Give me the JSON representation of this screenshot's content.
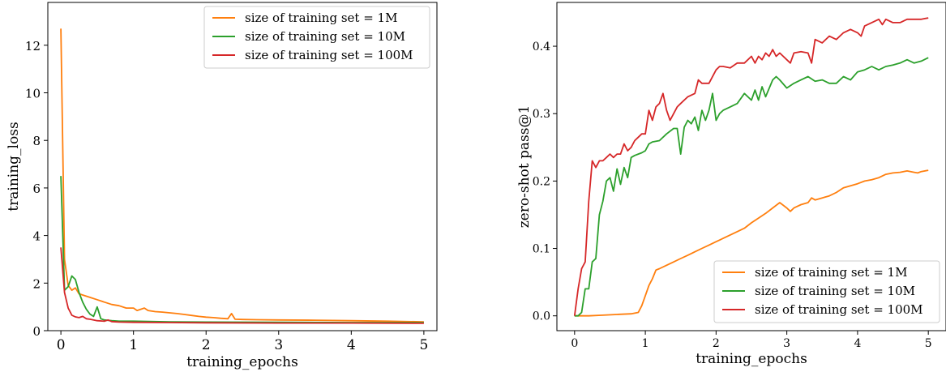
{
  "chart_data": [
    {
      "type": "line",
      "title": "",
      "xlabel": "training_epochs",
      "ylabel": "training_loss",
      "xlim": [
        -0.18,
        5.18
      ],
      "ylim": [
        0,
        13.8
      ],
      "xticks": [
        0,
        1,
        2,
        3,
        4,
        5
      ],
      "xtick_labels": [
        "0",
        "1",
        "2",
        "3",
        "4",
        "5"
      ],
      "yticks": [
        0,
        2,
        4,
        6,
        8,
        10,
        12
      ],
      "ytick_labels": [
        "0",
        "2",
        "4",
        "6",
        "8",
        "10",
        "12"
      ],
      "grid": false,
      "legend_position": "upper right",
      "series": [
        {
          "name": "size of training set = 1M",
          "color": "#ff7f0e",
          "x": [
            0,
            0.05,
            0.1,
            0.15,
            0.2,
            0.25,
            0.3,
            0.4,
            0.5,
            0.6,
            0.7,
            0.8,
            0.9,
            1.0,
            1.05,
            1.1,
            1.15,
            1.2,
            1.3,
            1.4,
            1.5,
            1.6,
            1.7,
            1.8,
            1.9,
            2.0,
            2.1,
            2.2,
            2.3,
            2.35,
            2.4,
            2.5,
            2.7,
            3.0,
            3.5,
            4.0,
            4.5,
            5.0
          ],
          "y": [
            12.7,
            3.0,
            1.9,
            1.7,
            1.8,
            1.55,
            1.5,
            1.4,
            1.3,
            1.2,
            1.1,
            1.05,
            0.95,
            0.95,
            0.85,
            0.9,
            0.95,
            0.85,
            0.8,
            0.78,
            0.75,
            0.72,
            0.68,
            0.64,
            0.6,
            0.57,
            0.55,
            0.52,
            0.5,
            0.72,
            0.48,
            0.47,
            0.46,
            0.45,
            0.44,
            0.42,
            0.4,
            0.37
          ]
        },
        {
          "name": "size of training set = 10M",
          "color": "#2ca02c",
          "x": [
            0,
            0.05,
            0.1,
            0.15,
            0.2,
            0.25,
            0.3,
            0.35,
            0.4,
            0.45,
            0.5,
            0.55,
            0.6,
            0.7,
            0.8,
            1.0,
            1.5,
            2.0,
            3.0,
            4.0,
            5.0
          ],
          "y": [
            6.5,
            1.7,
            1.85,
            2.3,
            2.15,
            1.6,
            1.2,
            0.9,
            0.7,
            0.6,
            1.0,
            0.5,
            0.45,
            0.42,
            0.4,
            0.4,
            0.37,
            0.36,
            0.35,
            0.34,
            0.34
          ]
        },
        {
          "name": "size of training set = 100M",
          "color": "#d62728",
          "x": [
            0,
            0.05,
            0.1,
            0.15,
            0.2,
            0.25,
            0.3,
            0.35,
            0.4,
            0.5,
            0.6,
            0.65,
            0.7,
            0.8,
            1.0,
            1.5,
            2.0,
            3.0,
            4.0,
            5.0
          ],
          "y": [
            3.5,
            1.6,
            0.95,
            0.65,
            0.58,
            0.55,
            0.6,
            0.5,
            0.48,
            0.42,
            0.4,
            0.45,
            0.38,
            0.36,
            0.35,
            0.34,
            0.33,
            0.32,
            0.32,
            0.31
          ]
        }
      ]
    },
    {
      "type": "line",
      "title": "",
      "xlabel": "training_epochs",
      "ylabel": "zero-shot pass@1",
      "xlim": [
        -0.25,
        5.25
      ],
      "ylim": [
        -0.022,
        0.465
      ],
      "xticks": [
        0,
        1,
        2,
        3,
        4,
        5
      ],
      "xtick_labels": [
        "0",
        "1",
        "2",
        "3",
        "4",
        "5"
      ],
      "yticks": [
        0.0,
        0.1,
        0.2,
        0.3,
        0.4
      ],
      "ytick_labels": [
        "0.0",
        "0.1",
        "0.2",
        "0.3",
        "0.4"
      ],
      "grid": false,
      "legend_position": "lower right",
      "series": [
        {
          "name": "size of training set = 1M",
          "color": "#ff7f0e",
          "x": [
            0,
            0.2,
            0.4,
            0.6,
            0.8,
            0.9,
            0.95,
            1.0,
            1.05,
            1.1,
            1.15,
            1.2,
            1.3,
            1.4,
            1.5,
            1.6,
            1.7,
            1.8,
            1.9,
            2.0,
            2.1,
            2.2,
            2.3,
            2.4,
            2.5,
            2.6,
            2.7,
            2.8,
            2.9,
            3.0,
            3.05,
            3.1,
            3.2,
            3.3,
            3.35,
            3.4,
            3.5,
            3.6,
            3.7,
            3.8,
            3.9,
            4.0,
            4.1,
            4.2,
            4.3,
            4.4,
            4.5,
            4.6,
            4.7,
            4.8,
            4.85,
            4.9,
            5.0
          ],
          "y": [
            0.0,
            0.0,
            0.001,
            0.002,
            0.003,
            0.005,
            0.015,
            0.03,
            0.045,
            0.055,
            0.068,
            0.07,
            0.075,
            0.08,
            0.085,
            0.09,
            0.095,
            0.1,
            0.105,
            0.11,
            0.115,
            0.12,
            0.125,
            0.13,
            0.138,
            0.145,
            0.152,
            0.16,
            0.168,
            0.16,
            0.155,
            0.16,
            0.165,
            0.168,
            0.175,
            0.172,
            0.175,
            0.178,
            0.183,
            0.19,
            0.193,
            0.196,
            0.2,
            0.202,
            0.205,
            0.21,
            0.212,
            0.213,
            0.215,
            0.213,
            0.212,
            0.214,
            0.216
          ]
        },
        {
          "name": "size of training set = 10M",
          "color": "#2ca02c",
          "x": [
            0,
            0.05,
            0.1,
            0.15,
            0.2,
            0.25,
            0.3,
            0.35,
            0.4,
            0.45,
            0.5,
            0.55,
            0.6,
            0.65,
            0.7,
            0.75,
            0.8,
            0.85,
            0.9,
            0.95,
            1.0,
            1.05,
            1.1,
            1.2,
            1.3,
            1.4,
            1.45,
            1.5,
            1.55,
            1.6,
            1.65,
            1.7,
            1.75,
            1.8,
            1.85,
            1.9,
            1.95,
            2.0,
            2.05,
            2.1,
            2.2,
            2.3,
            2.4,
            2.5,
            2.55,
            2.6,
            2.65,
            2.7,
            2.8,
            2.85,
            2.9,
            3.0,
            3.1,
            3.2,
            3.3,
            3.4,
            3.5,
            3.6,
            3.7,
            3.8,
            3.9,
            4.0,
            4.1,
            4.2,
            4.3,
            4.4,
            4.5,
            4.6,
            4.7,
            4.8,
            4.9,
            5.0
          ],
          "y": [
            0.0,
            0.0,
            0.005,
            0.04,
            0.04,
            0.08,
            0.085,
            0.15,
            0.17,
            0.2,
            0.205,
            0.185,
            0.218,
            0.195,
            0.22,
            0.205,
            0.235,
            0.238,
            0.24,
            0.242,
            0.245,
            0.255,
            0.258,
            0.26,
            0.27,
            0.278,
            0.278,
            0.24,
            0.28,
            0.29,
            0.285,
            0.295,
            0.275,
            0.305,
            0.29,
            0.305,
            0.33,
            0.29,
            0.3,
            0.305,
            0.31,
            0.315,
            0.33,
            0.32,
            0.335,
            0.32,
            0.34,
            0.325,
            0.35,
            0.355,
            0.35,
            0.338,
            0.345,
            0.35,
            0.355,
            0.348,
            0.35,
            0.345,
            0.345,
            0.355,
            0.35,
            0.362,
            0.365,
            0.37,
            0.365,
            0.37,
            0.372,
            0.375,
            0.38,
            0.375,
            0.378,
            0.383
          ]
        },
        {
          "name": "size of training set = 100M",
          "color": "#d62728",
          "x": [
            0,
            0.05,
            0.1,
            0.15,
            0.2,
            0.25,
            0.3,
            0.35,
            0.4,
            0.45,
            0.5,
            0.55,
            0.6,
            0.65,
            0.7,
            0.75,
            0.8,
            0.85,
            0.9,
            0.95,
            1.0,
            1.05,
            1.1,
            1.15,
            1.2,
            1.25,
            1.3,
            1.35,
            1.4,
            1.45,
            1.5,
            1.6,
            1.7,
            1.75,
            1.8,
            1.9,
            2.0,
            2.05,
            2.1,
            2.2,
            2.3,
            2.4,
            2.5,
            2.55,
            2.6,
            2.65,
            2.7,
            2.75,
            2.8,
            2.85,
            2.9,
            3.0,
            3.05,
            3.1,
            3.2,
            3.3,
            3.35,
            3.4,
            3.5,
            3.6,
            3.7,
            3.8,
            3.9,
            4.0,
            4.05,
            4.1,
            4.2,
            4.3,
            4.35,
            4.4,
            4.5,
            4.6,
            4.7,
            4.8,
            4.9,
            5.0
          ],
          "y": [
            0.0,
            0.04,
            0.07,
            0.08,
            0.17,
            0.23,
            0.22,
            0.23,
            0.23,
            0.235,
            0.24,
            0.235,
            0.24,
            0.24,
            0.255,
            0.245,
            0.25,
            0.26,
            0.265,
            0.27,
            0.27,
            0.305,
            0.29,
            0.31,
            0.315,
            0.33,
            0.305,
            0.29,
            0.3,
            0.31,
            0.315,
            0.325,
            0.33,
            0.35,
            0.345,
            0.345,
            0.365,
            0.37,
            0.37,
            0.368,
            0.375,
            0.375,
            0.385,
            0.375,
            0.385,
            0.38,
            0.39,
            0.385,
            0.395,
            0.385,
            0.39,
            0.38,
            0.375,
            0.39,
            0.392,
            0.39,
            0.375,
            0.41,
            0.405,
            0.415,
            0.41,
            0.42,
            0.425,
            0.42,
            0.415,
            0.43,
            0.435,
            0.44,
            0.432,
            0.44,
            0.435,
            0.435,
            0.44,
            0.44,
            0.44,
            0.442
          ]
        }
      ]
    }
  ]
}
